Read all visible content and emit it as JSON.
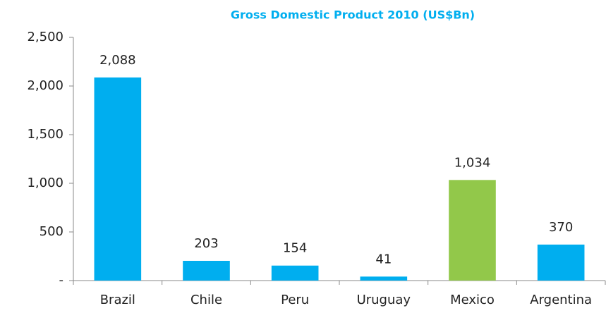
{
  "chart_data": {
    "type": "bar",
    "title": "Gross Domestic Product 2010 (US$Bn)",
    "categories": [
      "Brazil",
      "Chile",
      "Peru",
      "Uruguay",
      "Mexico",
      "Argentina"
    ],
    "values": [
      2088,
      203,
      154,
      41,
      1034,
      370
    ],
    "value_labels": [
      "2,088",
      "203",
      "154",
      "41",
      "1,034",
      "370"
    ],
    "colors": [
      "#00aeef",
      "#00aeef",
      "#00aeef",
      "#00aeef",
      "#92c84a",
      "#00aeef"
    ],
    "ylim": [
      0,
      2500
    ],
    "yticks": [
      {
        "value": 0,
        "label": "-"
      },
      500,
      {
        "value": 1000,
        "label": "1,000"
      },
      {
        "value": 1500,
        "label": "1,500"
      },
      {
        "value": 2000,
        "label": "2,000"
      },
      {
        "value": 2500,
        "label": "2,500"
      }
    ],
    "grid": false
  }
}
